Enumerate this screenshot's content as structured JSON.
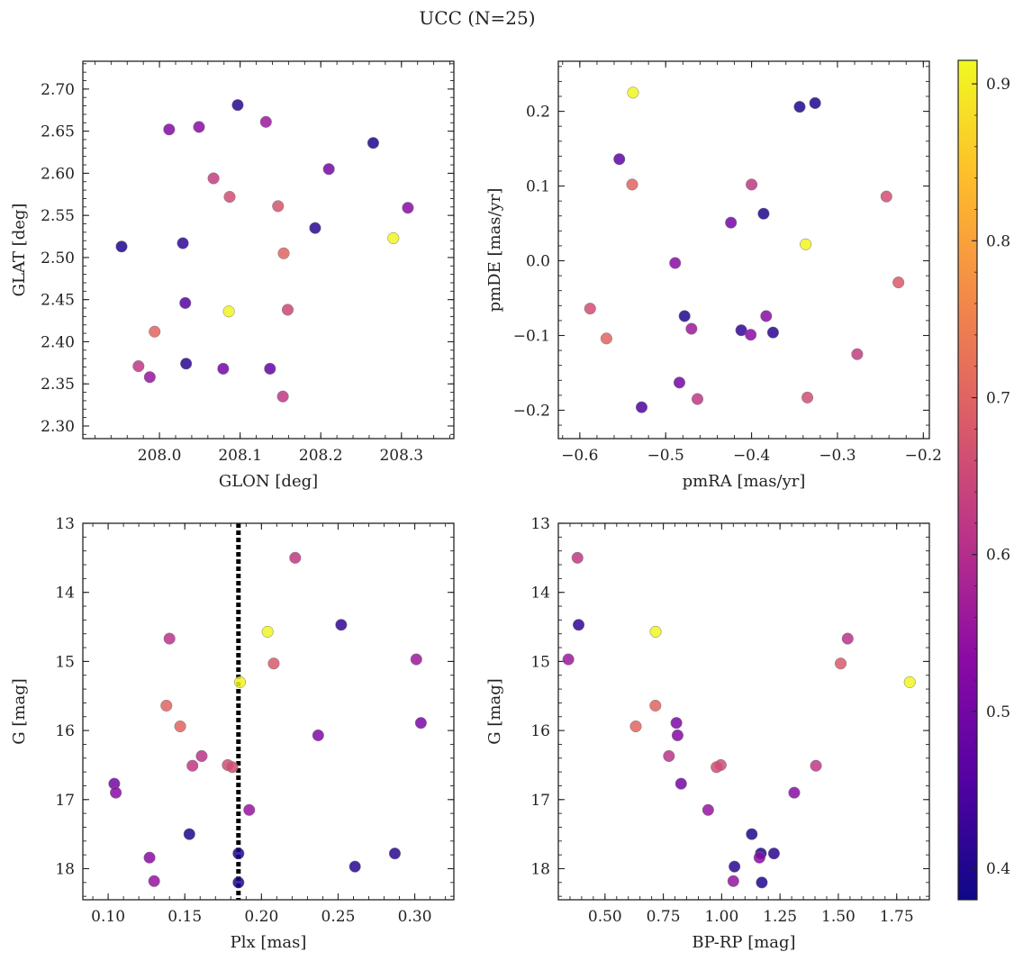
{
  "figure": {
    "title": "UCC (N=25)"
  },
  "colorbar": {
    "min": 0.38,
    "max": 0.915,
    "ticks": [
      0.4,
      0.5,
      0.6,
      0.7,
      0.8,
      0.9
    ],
    "tick_labels": [
      "0.4",
      "0.5",
      "0.6",
      "0.7",
      "0.8",
      "0.9"
    ],
    "colormap": "plasma"
  },
  "chart_data": [
    {
      "type": "scatter",
      "xlabel": "GLON [deg]",
      "ylabel": "GLAT [deg]",
      "xlim": [
        207.905,
        208.365
      ],
      "ylim": [
        2.285,
        2.733
      ],
      "xticks": [
        208.0,
        208.1,
        208.2,
        208.3
      ],
      "xtick_labels": [
        "208.0",
        "208.1",
        "208.2",
        "208.3"
      ],
      "yticks": [
        2.3,
        2.35,
        2.4,
        2.45,
        2.5,
        2.55,
        2.6,
        2.65,
        2.7
      ],
      "ytick_labels": [
        "2.30",
        "2.35",
        "2.40",
        "2.45",
        "2.50",
        "2.55",
        "2.60",
        "2.65",
        "2.70"
      ],
      "points": [
        {
          "x": 207.953,
          "y": 2.513,
          "c": 0.4
        },
        {
          "x": 208.012,
          "y": 2.652,
          "c": 0.52
        },
        {
          "x": 208.049,
          "y": 2.655,
          "c": 0.53
        },
        {
          "x": 208.097,
          "y": 2.681,
          "c": 0.41
        },
        {
          "x": 208.132,
          "y": 2.661,
          "c": 0.56
        },
        {
          "x": 208.265,
          "y": 2.636,
          "c": 0.4
        },
        {
          "x": 208.21,
          "y": 2.605,
          "c": 0.5
        },
        {
          "x": 208.067,
          "y": 2.594,
          "c": 0.63
        },
        {
          "x": 208.087,
          "y": 2.572,
          "c": 0.66
        },
        {
          "x": 208.147,
          "y": 2.561,
          "c": 0.67
        },
        {
          "x": 208.308,
          "y": 2.559,
          "c": 0.53
        },
        {
          "x": 208.193,
          "y": 2.535,
          "c": 0.41
        },
        {
          "x": 208.029,
          "y": 2.517,
          "c": 0.42
        },
        {
          "x": 208.29,
          "y": 2.523,
          "c": 0.91
        },
        {
          "x": 208.154,
          "y": 2.505,
          "c": 0.7
        },
        {
          "x": 208.032,
          "y": 2.446,
          "c": 0.46
        },
        {
          "x": 208.086,
          "y": 2.436,
          "c": 0.91
        },
        {
          "x": 208.159,
          "y": 2.438,
          "c": 0.65
        },
        {
          "x": 207.994,
          "y": 2.412,
          "c": 0.7
        },
        {
          "x": 207.974,
          "y": 2.371,
          "c": 0.62
        },
        {
          "x": 207.988,
          "y": 2.358,
          "c": 0.55
        },
        {
          "x": 208.033,
          "y": 2.374,
          "c": 0.41
        },
        {
          "x": 208.079,
          "y": 2.368,
          "c": 0.5
        },
        {
          "x": 208.137,
          "y": 2.368,
          "c": 0.48
        },
        {
          "x": 208.153,
          "y": 2.335,
          "c": 0.62
        }
      ]
    },
    {
      "type": "scatter",
      "xlabel": "pmRA [mas/yr]",
      "ylabel": "pmDE [mas/yr]",
      "xlim": [
        -0.625,
        -0.193
      ],
      "ylim": [
        -0.238,
        0.267
      ],
      "xticks": [
        -0.6,
        -0.5,
        -0.4,
        -0.3,
        -0.2
      ],
      "xtick_labels": [
        "−0.6",
        "−0.5",
        "−0.4",
        "−0.3",
        "−0.2"
      ],
      "yticks": [
        -0.2,
        -0.1,
        0.0,
        0.1,
        0.2
      ],
      "ytick_labels": [
        "−0.2",
        "−0.1",
        "0.0",
        "0.1",
        "0.2"
      ],
      "points": [
        {
          "x": -0.538,
          "y": 0.225,
          "c": 0.91
        },
        {
          "x": -0.344,
          "y": 0.206,
          "c": 0.4
        },
        {
          "x": -0.326,
          "y": 0.211,
          "c": 0.4
        },
        {
          "x": -0.554,
          "y": 0.136,
          "c": 0.47
        },
        {
          "x": -0.539,
          "y": 0.102,
          "c": 0.7
        },
        {
          "x": -0.4,
          "y": 0.102,
          "c": 0.62
        },
        {
          "x": -0.243,
          "y": 0.086,
          "c": 0.66
        },
        {
          "x": -0.386,
          "y": 0.063,
          "c": 0.4
        },
        {
          "x": -0.424,
          "y": 0.051,
          "c": 0.5
        },
        {
          "x": -0.337,
          "y": 0.022,
          "c": 0.91
        },
        {
          "x": -0.489,
          "y": -0.003,
          "c": 0.53
        },
        {
          "x": -0.229,
          "y": -0.029,
          "c": 0.68
        },
        {
          "x": -0.588,
          "y": -0.064,
          "c": 0.66
        },
        {
          "x": -0.569,
          "y": -0.104,
          "c": 0.7
        },
        {
          "x": -0.478,
          "y": -0.074,
          "c": 0.4
        },
        {
          "x": -0.47,
          "y": -0.091,
          "c": 0.56
        },
        {
          "x": -0.412,
          "y": -0.093,
          "c": 0.42
        },
        {
          "x": -0.401,
          "y": -0.099,
          "c": 0.53
        },
        {
          "x": -0.383,
          "y": -0.074,
          "c": 0.53
        },
        {
          "x": -0.375,
          "y": -0.096,
          "c": 0.41
        },
        {
          "x": -0.277,
          "y": -0.125,
          "c": 0.63
        },
        {
          "x": -0.484,
          "y": -0.163,
          "c": 0.5
        },
        {
          "x": -0.463,
          "y": -0.185,
          "c": 0.62
        },
        {
          "x": -0.335,
          "y": -0.183,
          "c": 0.66
        },
        {
          "x": -0.528,
          "y": -0.196,
          "c": 0.45
        }
      ]
    },
    {
      "type": "scatter",
      "xlabel": "Plx [mas]",
      "ylabel": "G [mag]",
      "xlim": [
        0.0835,
        0.3255
      ],
      "ylim": [
        18.45,
        13.0
      ],
      "y_inverted": true,
      "xticks": [
        0.1,
        0.15,
        0.2,
        0.25,
        0.3
      ],
      "xtick_labels": [
        "0.10",
        "0.15",
        "0.20",
        "0.25",
        "0.30"
      ],
      "yticks": [
        13,
        14,
        15,
        16,
        17,
        18
      ],
      "ytick_labels": [
        "13",
        "14",
        "15",
        "16",
        "17",
        "18"
      ],
      "vline": {
        "x": 0.185,
        "style": "dotted"
      },
      "points": [
        {
          "x": 0.222,
          "y": 13.5,
          "c": 0.62
        },
        {
          "x": 0.252,
          "y": 14.47,
          "c": 0.42
        },
        {
          "x": 0.204,
          "y": 14.57,
          "c": 0.91
        },
        {
          "x": 0.14,
          "y": 14.67,
          "c": 0.61
        },
        {
          "x": 0.208,
          "y": 15.03,
          "c": 0.68
        },
        {
          "x": 0.301,
          "y": 14.97,
          "c": 0.56
        },
        {
          "x": 0.186,
          "y": 15.3,
          "c": 0.91
        },
        {
          "x": 0.138,
          "y": 15.64,
          "c": 0.7
        },
        {
          "x": 0.147,
          "y": 15.94,
          "c": 0.7
        },
        {
          "x": 0.304,
          "y": 15.89,
          "c": 0.51
        },
        {
          "x": 0.237,
          "y": 16.07,
          "c": 0.52
        },
        {
          "x": 0.161,
          "y": 16.37,
          "c": 0.61
        },
        {
          "x": 0.155,
          "y": 16.51,
          "c": 0.62
        },
        {
          "x": 0.178,
          "y": 16.5,
          "c": 0.66
        },
        {
          "x": 0.181,
          "y": 16.53,
          "c": 0.66
        },
        {
          "x": 0.104,
          "y": 16.77,
          "c": 0.5
        },
        {
          "x": 0.105,
          "y": 16.9,
          "c": 0.53
        },
        {
          "x": 0.192,
          "y": 17.15,
          "c": 0.55
        },
        {
          "x": 0.153,
          "y": 17.5,
          "c": 0.4
        },
        {
          "x": 0.127,
          "y": 17.84,
          "c": 0.53
        },
        {
          "x": 0.185,
          "y": 17.78,
          "c": 0.4
        },
        {
          "x": 0.287,
          "y": 17.78,
          "c": 0.41
        },
        {
          "x": 0.261,
          "y": 17.97,
          "c": 0.41
        },
        {
          "x": 0.13,
          "y": 18.18,
          "c": 0.55
        },
        {
          "x": 0.185,
          "y": 18.2,
          "c": 0.4
        }
      ]
    },
    {
      "type": "scatter",
      "xlabel": "BP-RP [mag]",
      "ylabel": "G [mag]",
      "xlim": [
        0.3,
        1.89
      ],
      "ylim": [
        18.45,
        13.0
      ],
      "y_inverted": true,
      "xticks": [
        0.5,
        0.75,
        1.0,
        1.25,
        1.5,
        1.75
      ],
      "xtick_labels": [
        "0.50",
        "0.75",
        "1.00",
        "1.25",
        "1.50",
        "1.75"
      ],
      "yticks": [
        13,
        14,
        15,
        16,
        17,
        18
      ],
      "ytick_labels": [
        "13",
        "14",
        "15",
        "16",
        "17",
        "18"
      ],
      "points": [
        {
          "x": 0.382,
          "y": 13.5,
          "c": 0.62
        },
        {
          "x": 0.387,
          "y": 14.47,
          "c": 0.42
        },
        {
          "x": 0.717,
          "y": 14.57,
          "c": 0.91
        },
        {
          "x": 1.54,
          "y": 14.67,
          "c": 0.61
        },
        {
          "x": 0.343,
          "y": 14.97,
          "c": 0.56
        },
        {
          "x": 1.51,
          "y": 15.03,
          "c": 0.68
        },
        {
          "x": 1.806,
          "y": 15.3,
          "c": 0.91
        },
        {
          "x": 0.716,
          "y": 15.64,
          "c": 0.7
        },
        {
          "x": 0.632,
          "y": 15.94,
          "c": 0.7
        },
        {
          "x": 0.806,
          "y": 15.89,
          "c": 0.51
        },
        {
          "x": 0.811,
          "y": 16.07,
          "c": 0.52
        },
        {
          "x": 0.774,
          "y": 16.37,
          "c": 0.61
        },
        {
          "x": 0.996,
          "y": 16.5,
          "c": 0.66
        },
        {
          "x": 0.978,
          "y": 16.53,
          "c": 0.66
        },
        {
          "x": 1.404,
          "y": 16.51,
          "c": 0.62
        },
        {
          "x": 0.826,
          "y": 16.77,
          "c": 0.5
        },
        {
          "x": 1.311,
          "y": 16.9,
          "c": 0.53
        },
        {
          "x": 0.942,
          "y": 17.15,
          "c": 0.55
        },
        {
          "x": 1.129,
          "y": 17.5,
          "c": 0.4
        },
        {
          "x": 1.168,
          "y": 17.78,
          "c": 0.4
        },
        {
          "x": 1.224,
          "y": 17.78,
          "c": 0.41
        },
        {
          "x": 1.162,
          "y": 17.84,
          "c": 0.53
        },
        {
          "x": 1.055,
          "y": 17.97,
          "c": 0.41
        },
        {
          "x": 1.05,
          "y": 18.18,
          "c": 0.55
        },
        {
          "x": 1.172,
          "y": 18.2,
          "c": 0.4
        }
      ]
    }
  ]
}
